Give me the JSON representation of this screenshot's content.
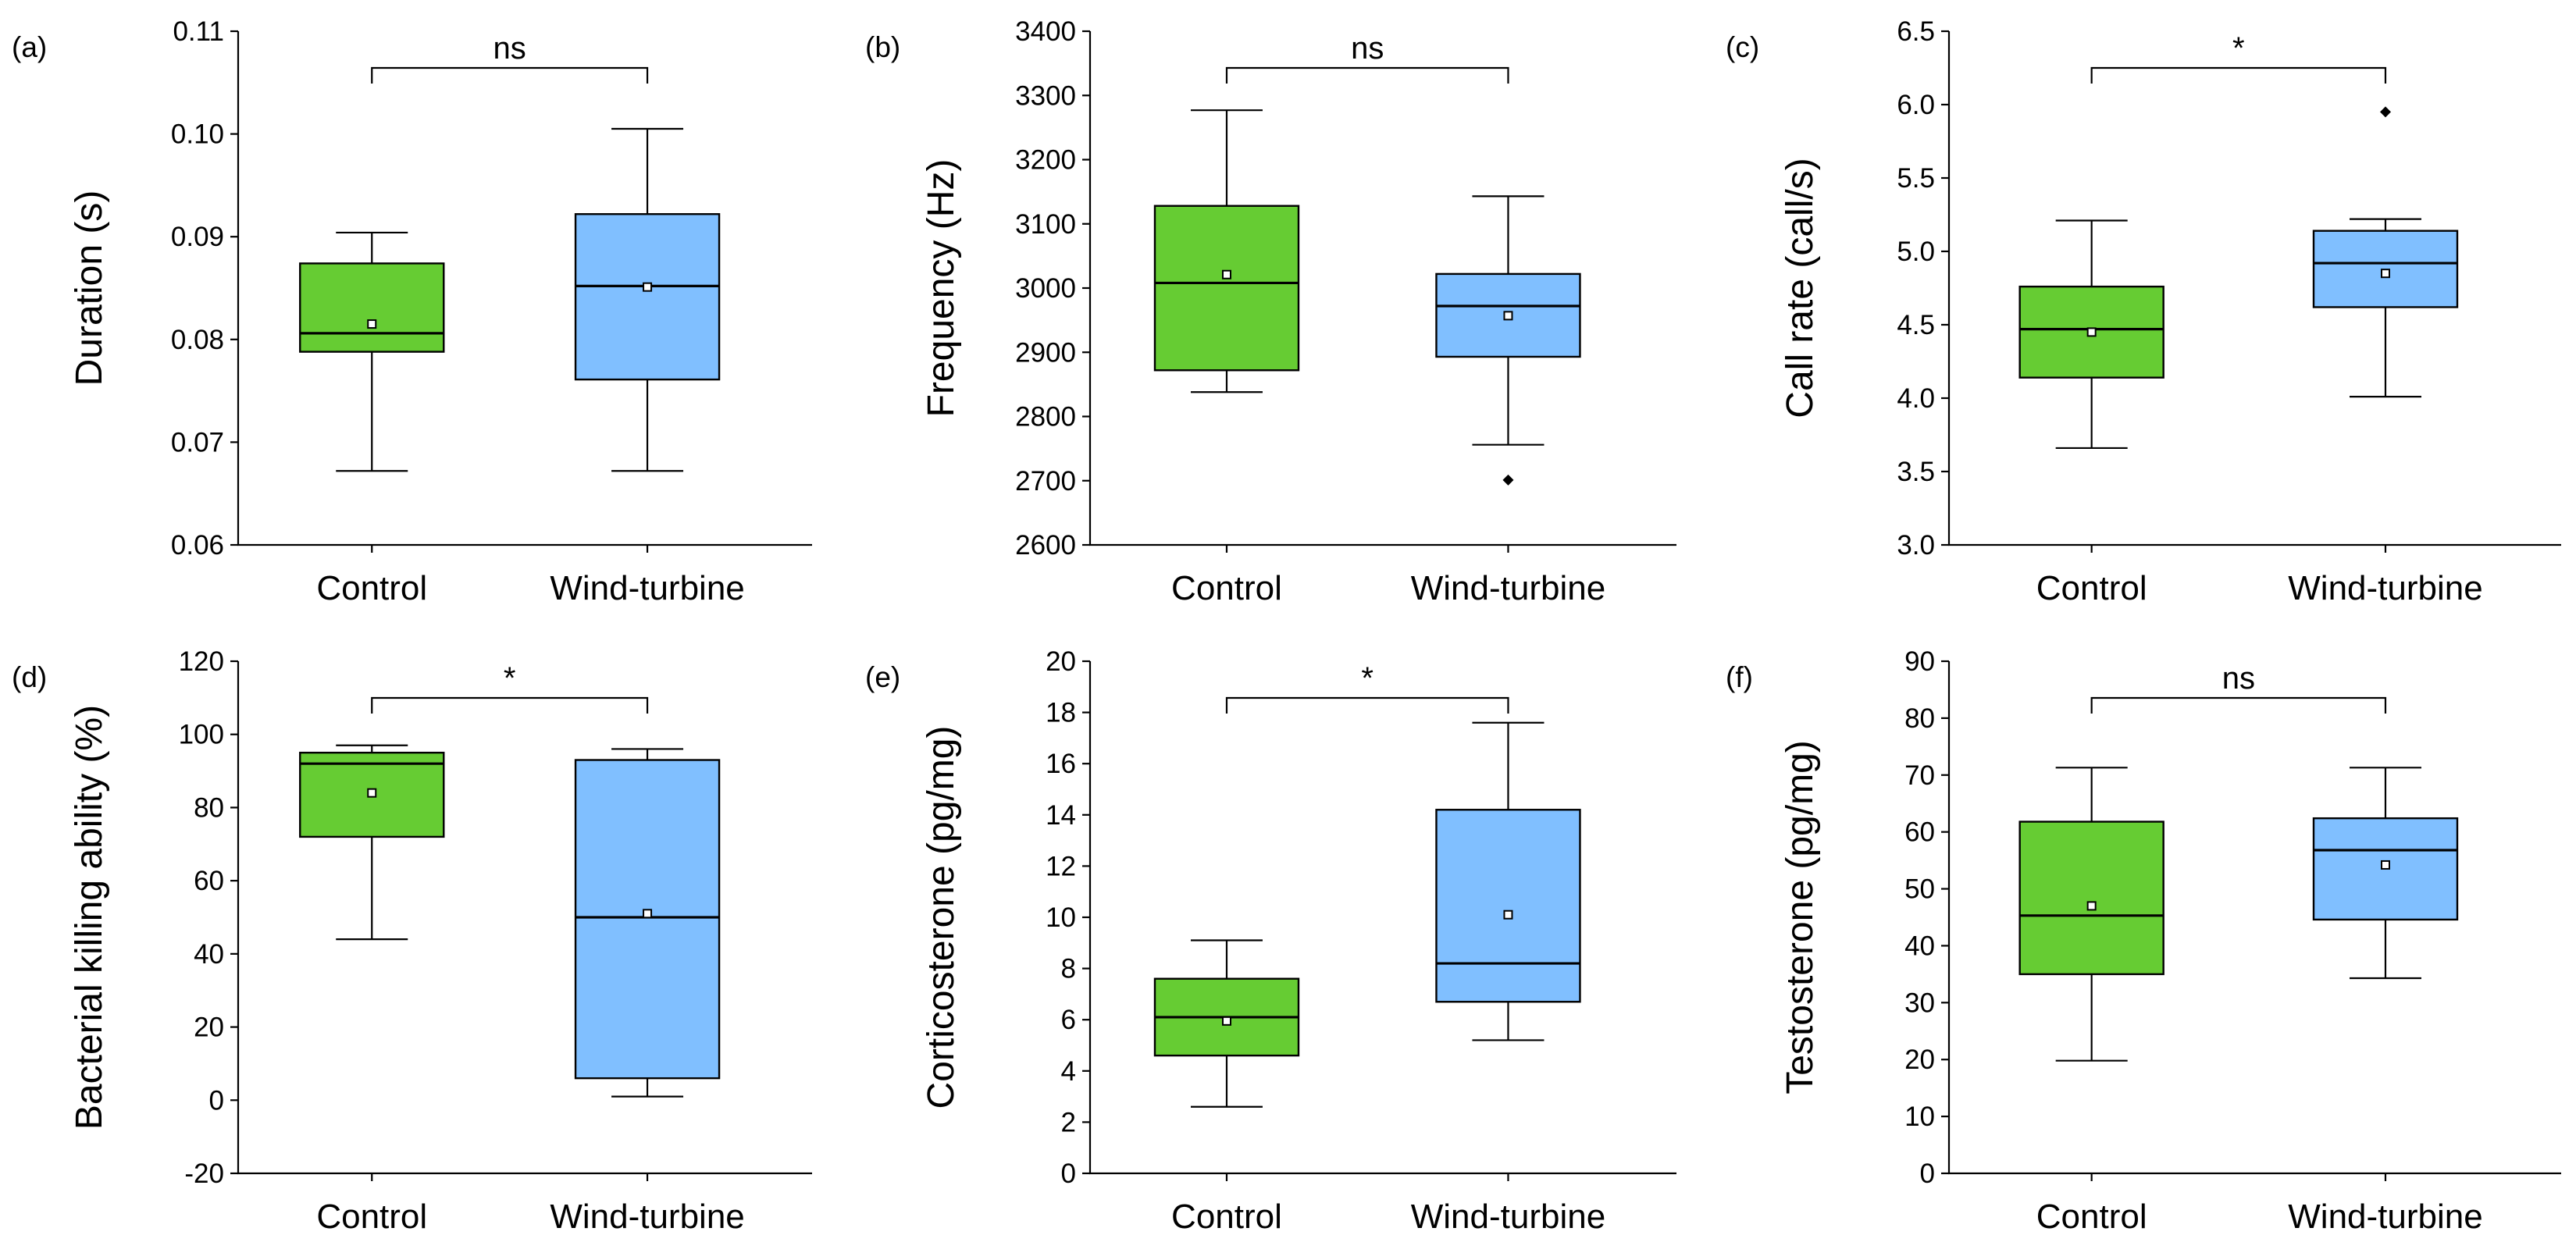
{
  "colors": {
    "control": "#66cc33",
    "wind_turbine": "#80bfff"
  },
  "chart_data": [
    {
      "type": "box",
      "panel_label": "(a)",
      "ylabel": "Duration (s)",
      "ylim": [
        0.06,
        0.11
      ],
      "yticks": [
        0.06,
        0.07,
        0.08,
        0.09,
        0.1,
        0.11
      ],
      "ytick_labels": [
        "0.06",
        "0.07",
        "0.08",
        "0.09",
        "0.10",
        "0.11"
      ],
      "categories": [
        "Control",
        "Wind-turbine"
      ],
      "boxes": [
        {
          "name": "Control",
          "whisker_low": 0.0672,
          "q1": 0.0788,
          "median": 0.0806,
          "q3": 0.0874,
          "whisker_high": 0.0904,
          "mean": 0.0815,
          "outliers": []
        },
        {
          "name": "Wind-turbine",
          "whisker_low": 0.0672,
          "q1": 0.0761,
          "median": 0.0852,
          "q3": 0.0922,
          "whisker_high": 0.1005,
          "mean": 0.0851,
          "outliers": []
        }
      ],
      "significance": "ns"
    },
    {
      "type": "box",
      "panel_label": "(b)",
      "ylabel": "Frequency (Hz)",
      "ylim": [
        2600,
        3400
      ],
      "yticks": [
        2600,
        2700,
        2800,
        2900,
        3000,
        3100,
        3200,
        3300,
        3400
      ],
      "ytick_labels": [
        "2600",
        "2700",
        "2800",
        "2900",
        "3000",
        "3100",
        "3200",
        "3300",
        "3400"
      ],
      "categories": [
        "Control",
        "Wind-turbine"
      ],
      "boxes": [
        {
          "name": "Control",
          "whisker_low": 2838,
          "q1": 2872,
          "median": 3008,
          "q3": 3128,
          "whisker_high": 3277,
          "mean": 3021,
          "outliers": []
        },
        {
          "name": "Wind-turbine",
          "whisker_low": 2756,
          "q1": 2893,
          "median": 2972,
          "q3": 3022,
          "whisker_high": 3143,
          "mean": 2957,
          "outliers": [
            2701
          ]
        }
      ],
      "significance": "ns"
    },
    {
      "type": "box",
      "panel_label": "(c)",
      "ylabel": "Call rate (call/s)",
      "ylim": [
        3.0,
        6.5
      ],
      "yticks": [
        3.0,
        3.5,
        4.0,
        4.5,
        5.0,
        5.5,
        6.0,
        6.5
      ],
      "ytick_labels": [
        "3.0",
        "3.5",
        "4.0",
        "4.5",
        "5.0",
        "5.5",
        "6.0",
        "6.5"
      ],
      "categories": [
        "Control",
        "Wind-turbine"
      ],
      "boxes": [
        {
          "name": "Control",
          "whisker_low": 3.66,
          "q1": 4.14,
          "median": 4.47,
          "q3": 4.76,
          "whisker_high": 5.21,
          "mean": 4.45,
          "outliers": []
        },
        {
          "name": "Wind-turbine",
          "whisker_low": 4.01,
          "q1": 4.62,
          "median": 4.92,
          "q3": 5.14,
          "whisker_high": 5.22,
          "mean": 4.85,
          "outliers": [
            5.95
          ]
        }
      ],
      "significance": "*"
    },
    {
      "type": "box",
      "panel_label": "(d)",
      "ylabel": "Bacterial killing ability (%)",
      "ylim": [
        -20,
        120
      ],
      "yticks": [
        -20,
        0,
        20,
        40,
        60,
        80,
        100,
        120
      ],
      "ytick_labels": [
        "-20",
        "0",
        "20",
        "40",
        "60",
        "80",
        "100",
        "120"
      ],
      "categories": [
        "Control",
        "Wind-turbine"
      ],
      "boxes": [
        {
          "name": "Control",
          "whisker_low": 44,
          "q1": 72,
          "median": 92,
          "q3": 95,
          "whisker_high": 97,
          "mean": 84,
          "outliers": []
        },
        {
          "name": "Wind-turbine",
          "whisker_low": 1,
          "q1": 6,
          "median": 50,
          "q3": 93,
          "whisker_high": 96,
          "mean": 51,
          "outliers": []
        }
      ],
      "significance": "*"
    },
    {
      "type": "box",
      "panel_label": "(e)",
      "ylabel": "Corticosterone (pg/mg)",
      "ylim": [
        0,
        20
      ],
      "yticks": [
        0,
        2,
        4,
        6,
        8,
        10,
        12,
        14,
        16,
        18,
        20
      ],
      "ytick_labels": [
        "0",
        "2",
        "4",
        "6",
        "8",
        "10",
        "12",
        "14",
        "16",
        "18",
        "20"
      ],
      "categories": [
        "Control",
        "Wind-turbine"
      ],
      "boxes": [
        {
          "name": "Control",
          "whisker_low": 2.6,
          "q1": 4.6,
          "median": 6.1,
          "q3": 7.6,
          "whisker_high": 9.1,
          "mean": 5.95,
          "outliers": []
        },
        {
          "name": "Wind-turbine",
          "whisker_low": 5.2,
          "q1": 6.7,
          "median": 8.2,
          "q3": 14.2,
          "whisker_high": 17.6,
          "mean": 10.1,
          "outliers": []
        }
      ],
      "significance": "*"
    },
    {
      "type": "box",
      "panel_label": "(f)",
      "ylabel": "Testosterone (pg/mg)",
      "ylim": [
        0,
        90
      ],
      "yticks": [
        0,
        10,
        20,
        30,
        40,
        50,
        60,
        70,
        80,
        90
      ],
      "ytick_labels": [
        "0",
        "10",
        "20",
        "30",
        "40",
        "50",
        "60",
        "70",
        "80",
        "90"
      ],
      "categories": [
        "Control",
        "Wind-turbine"
      ],
      "boxes": [
        {
          "name": "Control",
          "whisker_low": 19.8,
          "q1": 35.0,
          "median": 45.3,
          "q3": 61.8,
          "whisker_high": 71.3,
          "mean": 47.0,
          "outliers": []
        },
        {
          "name": "Wind-turbine",
          "whisker_low": 34.3,
          "q1": 44.6,
          "median": 56.8,
          "q3": 62.4,
          "whisker_high": 71.3,
          "mean": 54.2,
          "outliers": []
        }
      ],
      "significance": "ns"
    }
  ]
}
